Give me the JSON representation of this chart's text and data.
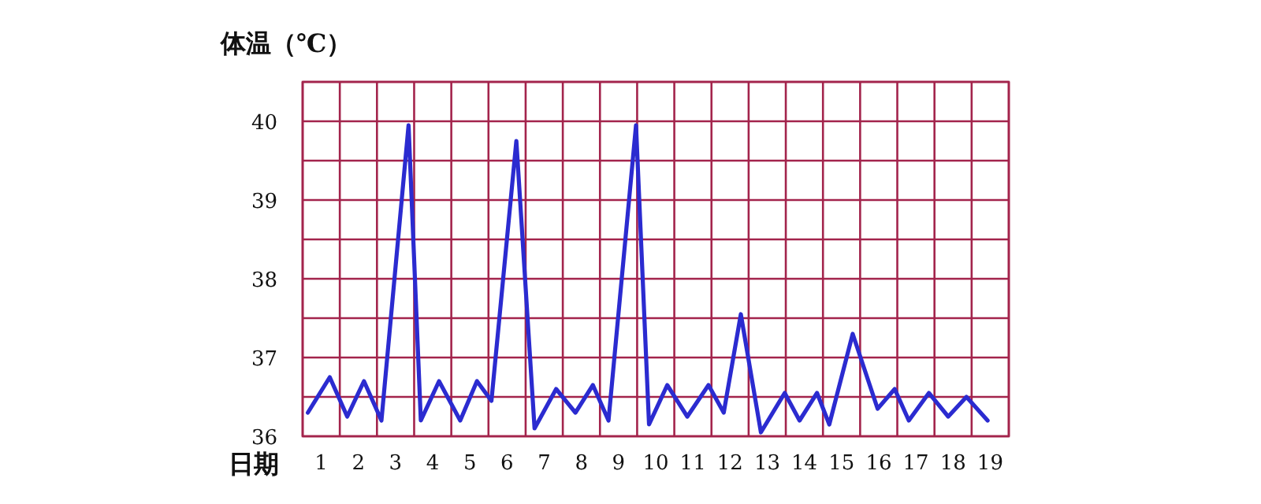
{
  "chart_data": {
    "type": "line",
    "ylabel": "体温（℃）",
    "xlabel": "日期",
    "x": [
      0.14,
      0.73,
      1.2,
      1.65,
      2.12,
      2.85,
      3.18,
      3.67,
      4.24,
      4.69,
      5.08,
      5.75,
      6.24,
      6.82,
      7.34,
      7.81,
      8.23,
      8.97,
      9.32,
      9.81,
      10.35,
      10.92,
      11.33,
      11.79,
      12.33,
      12.97,
      13.37,
      13.84,
      14.17,
      14.8,
      15.47,
      15.93,
      16.31,
      16.85,
      17.37,
      17.86,
      18.43
    ],
    "series": [
      {
        "color": "#2b2bd0",
        "values": [
          36.3,
          36.75,
          36.25,
          36.7,
          36.2,
          39.95,
          36.2,
          36.7,
          36.2,
          36.7,
          36.45,
          39.75,
          36.1,
          36.6,
          36.3,
          36.65,
          36.2,
          39.95,
          36.15,
          36.65,
          36.25,
          36.65,
          36.3,
          37.55,
          36.05,
          36.55,
          36.2,
          36.55,
          36.15,
          37.3,
          36.35,
          36.6,
          36.2,
          36.55,
          36.25,
          36.5,
          36.2
        ]
      }
    ],
    "xlim": [
      0,
      19
    ],
    "ylim": [
      36,
      40.5
    ],
    "xticks": [
      {
        "value": 0,
        "label": null
      },
      {
        "value": 1,
        "label": null
      },
      {
        "value": 2,
        "label": null
      },
      {
        "value": 3,
        "label": null
      },
      {
        "value": 4,
        "label": null
      },
      {
        "value": 5,
        "label": null
      },
      {
        "value": 6,
        "label": null
      },
      {
        "value": 7,
        "label": null
      },
      {
        "value": 8,
        "label": null
      },
      {
        "value": 9,
        "label": null
      },
      {
        "value": 10,
        "label": null
      },
      {
        "value": 11,
        "label": null
      },
      {
        "value": 12,
        "label": null
      },
      {
        "value": 13,
        "label": null
      },
      {
        "value": 14,
        "label": null
      },
      {
        "value": 15,
        "label": null
      },
      {
        "value": 16,
        "label": null
      },
      {
        "value": 17,
        "label": null
      },
      {
        "value": 18,
        "label": null
      },
      {
        "value": 19,
        "label": null
      },
      {
        "value": 0.5,
        "label": "1"
      },
      {
        "value": 1.5,
        "label": "2"
      },
      {
        "value": 2.5,
        "label": "3"
      },
      {
        "value": 3.5,
        "label": "4"
      },
      {
        "value": 4.5,
        "label": "5"
      },
      {
        "value": 5.5,
        "label": "6"
      },
      {
        "value": 6.5,
        "label": "7"
      },
      {
        "value": 7.5,
        "label": "8"
      },
      {
        "value": 8.5,
        "label": "9"
      },
      {
        "value": 9.5,
        "label": "10"
      },
      {
        "value": 10.5,
        "label": "11"
      },
      {
        "value": 11.5,
        "label": "12"
      },
      {
        "value": 12.5,
        "label": "13"
      },
      {
        "value": 13.5,
        "label": "14"
      },
      {
        "value": 14.5,
        "label": "15"
      },
      {
        "value": 15.5,
        "label": "16"
      },
      {
        "value": 16.5,
        "label": "17"
      },
      {
        "value": 17.5,
        "label": "18"
      },
      {
        "value": 18.5,
        "label": "19"
      }
    ],
    "yticks": [
      36,
      {
        "value": 36.5,
        "label": null
      },
      37,
      {
        "value": 37.5,
        "label": null
      },
      38,
      {
        "value": 38.5,
        "label": null
      },
      39,
      {
        "value": 39.5,
        "label": null
      },
      40,
      {
        "value": 40.5,
        "label": null
      }
    ],
    "grid": true
  }
}
